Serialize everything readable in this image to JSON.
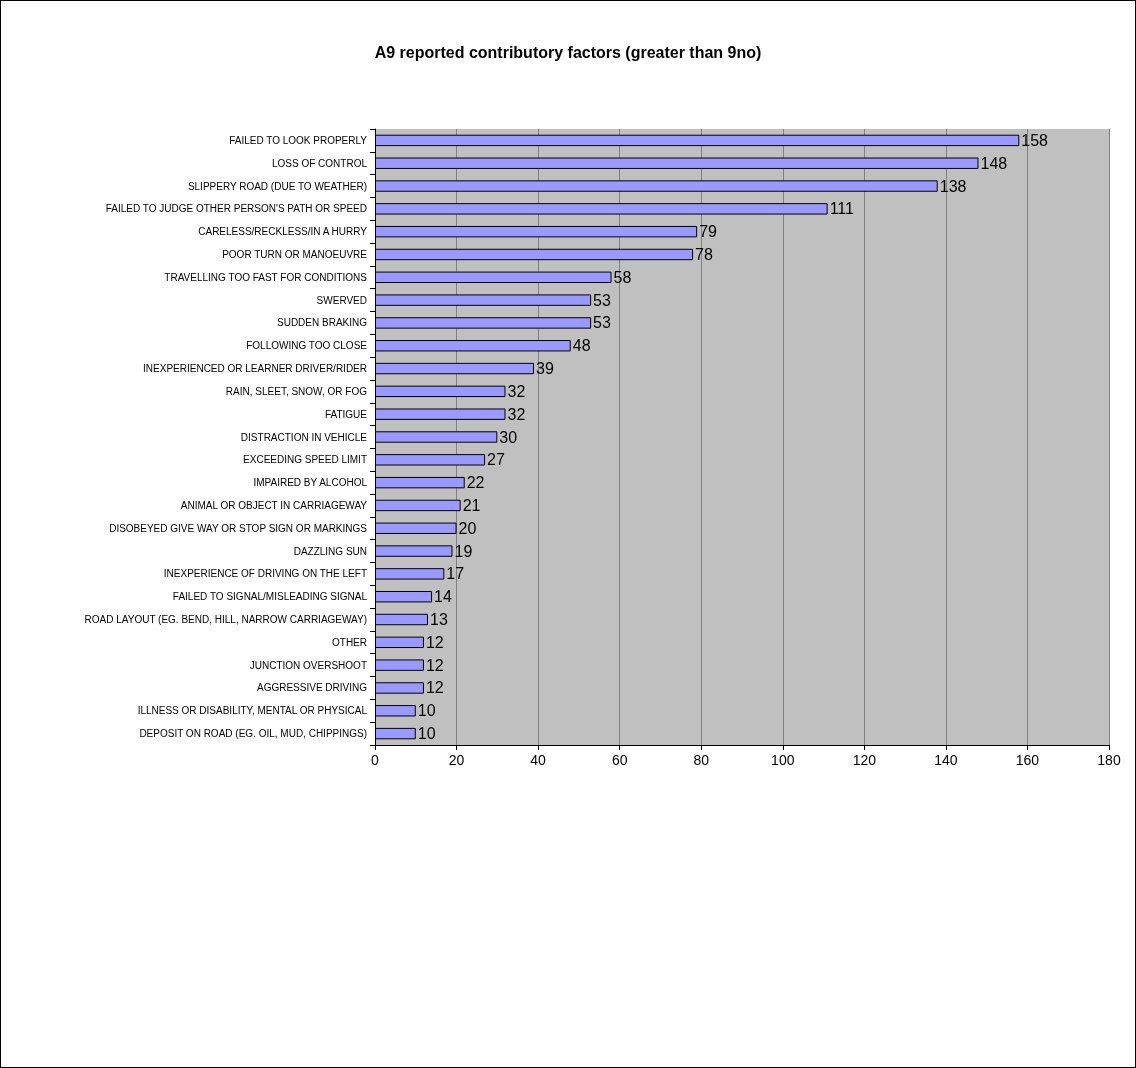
{
  "chart_data": {
    "type": "bar",
    "orientation": "horizontal",
    "title": "A9 reported contributory factors (greater than 9no)",
    "categories": [
      "FAILED TO LOOK PROPERLY",
      "LOSS OF CONTROL",
      "SLIPPERY ROAD (DUE TO WEATHER)",
      "FAILED TO JUDGE OTHER PERSON'S PATH OR SPEED",
      "CARELESS/RECKLESS/IN A HURRY",
      "POOR TURN OR MANOEUVRE",
      "TRAVELLING TOO FAST FOR CONDITIONS",
      "SWERVED",
      "SUDDEN BRAKING",
      "FOLLOWING TOO CLOSE",
      "INEXPERIENCED OR LEARNER DRIVER/RIDER",
      "RAIN, SLEET, SNOW, OR FOG",
      "FATIGUE",
      "DISTRACTION IN VEHICLE",
      "EXCEEDING SPEED LIMIT",
      "IMPAIRED BY ALCOHOL",
      "ANIMAL OR OBJECT IN CARRIAGEWAY",
      "DISOBEYED GIVE WAY OR STOP SIGN OR MARKINGS",
      "DAZZLING SUN",
      "INEXPERIENCE OF DRIVING ON THE LEFT",
      "FAILED TO SIGNAL/MISLEADING SIGNAL",
      "ROAD LAYOUT (EG. BEND, HILL, NARROW CARRIAGEWAY)",
      "OTHER",
      "JUNCTION OVERSHOOT",
      "AGGRESSIVE DRIVING",
      "ILLNESS OR DISABILITY, MENTAL OR PHYSICAL",
      "DEPOSIT ON ROAD (EG. OIL, MUD, CHIPPINGS)"
    ],
    "values": [
      158,
      148,
      138,
      111,
      79,
      78,
      58,
      53,
      53,
      48,
      39,
      32,
      32,
      30,
      27,
      22,
      21,
      20,
      19,
      17,
      14,
      13,
      12,
      12,
      12,
      10,
      10
    ],
    "color": "#9999ff",
    "xlim": [
      0,
      180
    ],
    "xticks": [
      0,
      20,
      40,
      60,
      80,
      100,
      120,
      140,
      160,
      180
    ],
    "grid": "x",
    "data_labels": true
  }
}
